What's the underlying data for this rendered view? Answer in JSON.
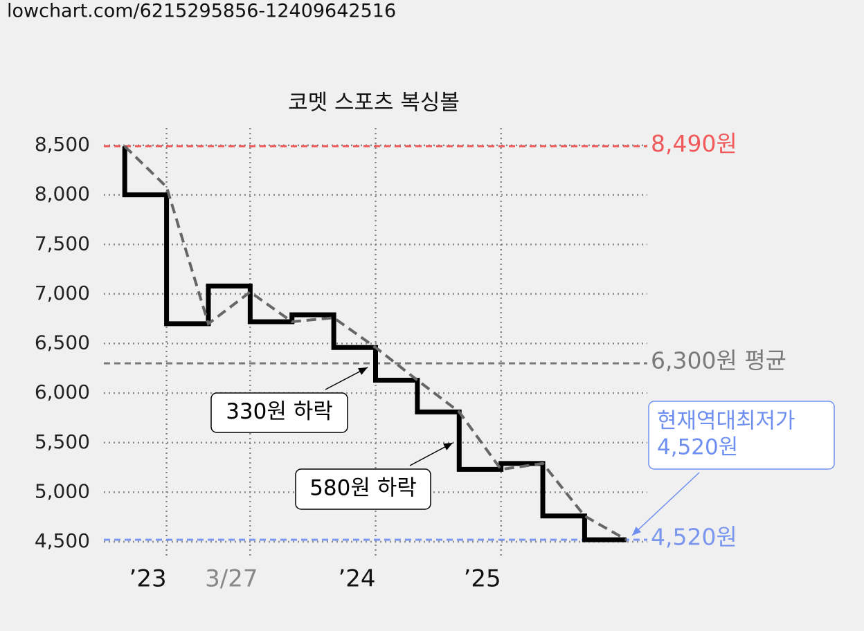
{
  "page_url": "lowchart.com/6215295856-12409642516",
  "chart_data": {
    "type": "step",
    "title": "코멧 스포츠 복싱볼",
    "xlim": [
      0,
      26
    ],
    "ylim": [
      4500,
      8500
    ],
    "xticks": [
      {
        "value": 3,
        "label": "’23"
      },
      {
        "value": 7,
        "label": "3/27"
      },
      {
        "value": 13,
        "label": "’24"
      },
      {
        "value": 19,
        "label": "’25"
      }
    ],
    "xtick_colors": [
      "#111111",
      "#888888",
      "#111111",
      "#111111"
    ],
    "yticks": [
      {
        "value": 4500,
        "label": "4,500"
      },
      {
        "value": 5000,
        "label": "5,000"
      },
      {
        "value": 5500,
        "label": "5,500"
      },
      {
        "value": 6000,
        "label": "6,000"
      },
      {
        "value": 6500,
        "label": "6,500"
      },
      {
        "value": 7000,
        "label": "7,000"
      },
      {
        "value": 7500,
        "label": "7,500"
      },
      {
        "value": 8000,
        "label": "8,000"
      },
      {
        "value": 8500,
        "label": "8,500"
      }
    ],
    "grid": true,
    "series": [
      {
        "color": "#000000",
        "style": "step",
        "x": [
          1,
          1,
          3,
          5,
          7,
          9,
          11,
          13,
          15,
          17,
          19,
          21,
          23,
          25
        ],
        "values": [
          8490,
          8000,
          6700,
          7080,
          6720,
          6790,
          6460,
          6130,
          5810,
          5230,
          5290,
          4760,
          4520,
          4520
        ]
      },
      {
        "color": "#666666",
        "style": "dashed",
        "x": [
          1,
          3,
          5,
          7,
          9,
          11,
          13,
          15,
          17,
          19,
          21,
          23,
          25
        ],
        "values": [
          8490,
          8080,
          6700,
          7020,
          6720,
          6760,
          6460,
          6130,
          5810,
          5230,
          5290,
          4760,
          4520
        ]
      }
    ],
    "reference_lines": [
      {
        "value": 8490,
        "label": "8,490원",
        "color": "#f05a5a"
      },
      {
        "value": 6300,
        "label": "6,300원 평균",
        "color": "#7a7a7a"
      },
      {
        "value": 4520,
        "label": "4,520원",
        "color": "#7b96ee"
      }
    ],
    "annotations": [
      {
        "lines": [
          "330원 하락"
        ],
        "color": "#000000"
      },
      {
        "lines": [
          "580원 하락"
        ],
        "color": "#000000"
      },
      {
        "lines": [
          "현재역대최저가",
          "4,520원"
        ],
        "color": "#6f8ff0"
      }
    ]
  }
}
